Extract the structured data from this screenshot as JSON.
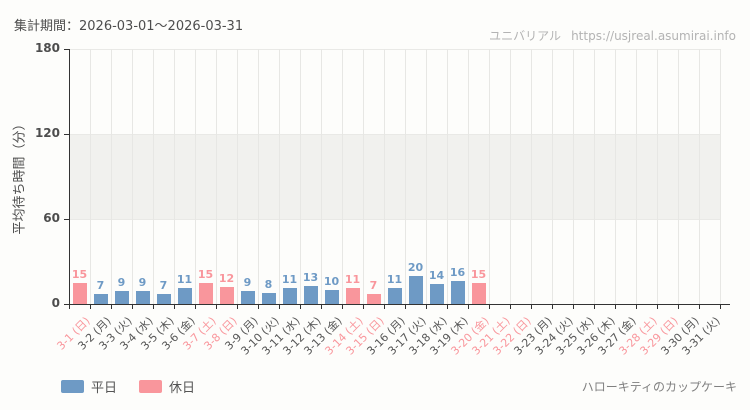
{
  "header": {
    "title": "集計期間：2026-03-01～2026-03-31",
    "watermark_site": "ユニバリアル",
    "watermark_url": "https://usjreal.asumirai.info"
  },
  "footer": {
    "attraction": "ハローキティのカップケーキ"
  },
  "legend": [
    {
      "key": "weekday",
      "label": "平日",
      "color": "#6e9ac5"
    },
    {
      "key": "holiday",
      "label": "休日",
      "color": "#f9969c"
    }
  ],
  "chart_data": {
    "type": "bar",
    "title": "集計期間：2026-03-01～2026-03-31",
    "xlabel": "",
    "ylabel": "平均待ち時間（分）",
    "ylim": [
      0,
      180
    ],
    "yticks": [
      0,
      60,
      120,
      180
    ],
    "grid": true,
    "legend_position": "bottom-left",
    "categories": [
      "3-1 (日)",
      "3-2 (月)",
      "3-3 (火)",
      "3-4 (水)",
      "3-5 (木)",
      "3-6 (金)",
      "3-7 (土)",
      "3-8 (日)",
      "3-9 (月)",
      "3-10 (火)",
      "3-11 (水)",
      "3-12 (木)",
      "3-13 (金)",
      "3-14 (土)",
      "3-15 (日)",
      "3-16 (月)",
      "3-17 (火)",
      "3-18 (水)",
      "3-19 (木)",
      "3-20 (金)",
      "3-21 (土)",
      "3-22 (日)",
      "3-23 (月)",
      "3-24 (火)",
      "3-25 (水)",
      "3-26 (木)",
      "3-27 (金)",
      "3-28 (土)",
      "3-29 (日)",
      "3-30 (月)",
      "3-31 (火)"
    ],
    "day_types": [
      "holiday",
      "weekday",
      "weekday",
      "weekday",
      "weekday",
      "weekday",
      "holiday",
      "holiday",
      "weekday",
      "weekday",
      "weekday",
      "weekday",
      "weekday",
      "holiday",
      "holiday",
      "weekday",
      "weekday",
      "weekday",
      "weekday",
      "holiday",
      "holiday",
      "holiday",
      "weekday",
      "weekday",
      "weekday",
      "weekday",
      "weekday",
      "holiday",
      "holiday",
      "weekday",
      "weekday"
    ],
    "values": [
      15,
      7,
      9,
      9,
      7,
      11,
      15,
      12,
      9,
      8,
      11,
      13,
      10,
      11,
      7,
      11,
      20,
      14,
      16,
      15,
      null,
      null,
      null,
      null,
      null,
      null,
      null,
      null,
      null,
      null,
      null
    ],
    "series_colors": {
      "weekday": "#6e9ac5",
      "holiday": "#f9969c"
    },
    "axis_text_colors": {
      "weekday": "#555555",
      "holiday": "#f9969c"
    },
    "band_color": "#f1f1ee"
  }
}
